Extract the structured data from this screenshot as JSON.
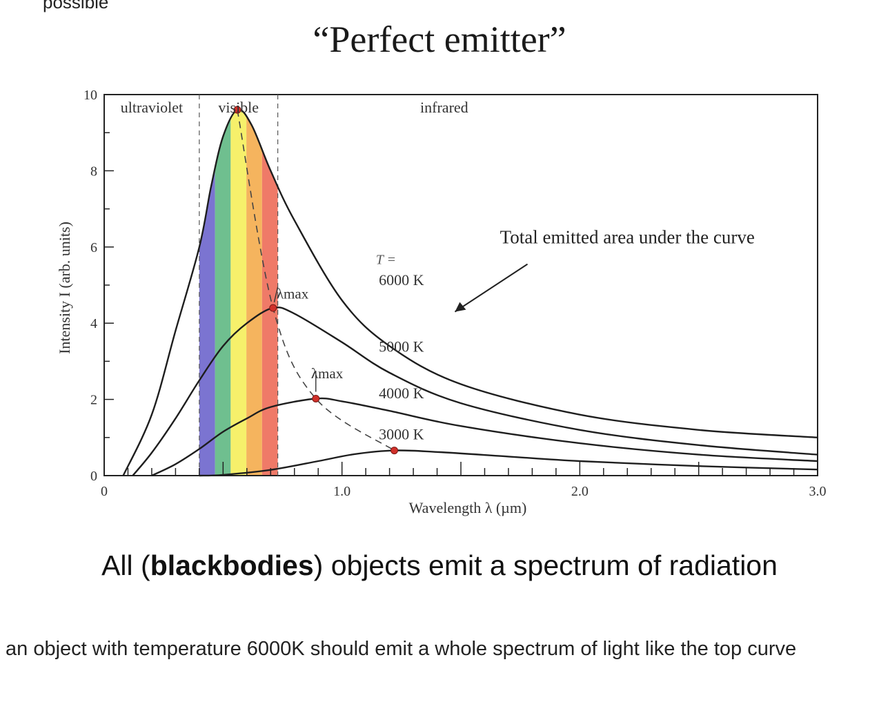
{
  "page": {
    "top_fragment": "possible",
    "title": "“Perfect emitter”",
    "headline": {
      "before": "All (",
      "bold": "blackbodies",
      "after": ") objects emit a spectrum of radiation"
    },
    "caption": "an object with temperature 6000K should emit a whole spectrum of light like the top curve"
  },
  "chart_data": {
    "type": "line",
    "xlabel": "Wavelength λ (µm)",
    "ylabel": "Intensity I (arb. units)",
    "xlim": [
      0,
      3.0
    ],
    "ylim": [
      0,
      10
    ],
    "x_tick_labels": [
      {
        "value": 0,
        "label": "0"
      },
      {
        "value": 1.0,
        "label": "1.0"
      },
      {
        "value": 2.0,
        "label": "2.0"
      },
      {
        "value": 3.0,
        "label": "3.0"
      }
    ],
    "y_tick_labels": [
      {
        "value": 0,
        "label": "0"
      },
      {
        "value": 2,
        "label": "2"
      },
      {
        "value": 4,
        "label": "4"
      },
      {
        "value": 6,
        "label": "6"
      },
      {
        "value": 8,
        "label": "8"
      },
      {
        "value": 10,
        "label": "10"
      }
    ],
    "regions": [
      {
        "label": "ultraviolet",
        "from": 0,
        "to": 0.4
      },
      {
        "label": "visible",
        "from": 0.4,
        "to": 0.73
      },
      {
        "label": "infrared",
        "from": 0.73,
        "to": 3.0
      }
    ],
    "visible_band_colors": [
      "#7b74d1",
      "#6fbf8f",
      "#f6f06b",
      "#f5b45e",
      "#ef7a68"
    ],
    "temperature_label": "T =",
    "series": [
      {
        "name": "6000 K",
        "peak": [
          0.56,
          9.6
        ],
        "points": [
          [
            0.08,
            0
          ],
          [
            0.2,
            1.6
          ],
          [
            0.3,
            3.8
          ],
          [
            0.4,
            6.0
          ],
          [
            0.45,
            7.6
          ],
          [
            0.5,
            8.9
          ],
          [
            0.56,
            9.6
          ],
          [
            0.62,
            9.2
          ],
          [
            0.7,
            8.0
          ],
          [
            0.8,
            6.7
          ],
          [
            1.0,
            4.6
          ],
          [
            1.2,
            3.4
          ],
          [
            1.5,
            2.4
          ],
          [
            2.0,
            1.6
          ],
          [
            2.5,
            1.2
          ],
          [
            3.0,
            1.0
          ]
        ]
      },
      {
        "name": "5000 K",
        "peak": [
          0.71,
          4.4
        ],
        "points": [
          [
            0.12,
            0
          ],
          [
            0.2,
            0.6
          ],
          [
            0.3,
            1.5
          ],
          [
            0.4,
            2.5
          ],
          [
            0.5,
            3.4
          ],
          [
            0.6,
            4.0
          ],
          [
            0.71,
            4.4
          ],
          [
            0.8,
            4.25
          ],
          [
            1.0,
            3.5
          ],
          [
            1.2,
            2.7
          ],
          [
            1.5,
            1.9
          ],
          [
            2.0,
            1.2
          ],
          [
            2.5,
            0.8
          ],
          [
            3.0,
            0.55
          ]
        ]
      },
      {
        "name": "4000 K",
        "peak": [
          0.89,
          2.02
        ],
        "points": [
          [
            0.2,
            0
          ],
          [
            0.3,
            0.3
          ],
          [
            0.4,
            0.7
          ],
          [
            0.5,
            1.15
          ],
          [
            0.6,
            1.5
          ],
          [
            0.7,
            1.8
          ],
          [
            0.89,
            2.02
          ],
          [
            1.0,
            1.95
          ],
          [
            1.2,
            1.7
          ],
          [
            1.5,
            1.3
          ],
          [
            2.0,
            0.85
          ],
          [
            2.5,
            0.55
          ],
          [
            3.0,
            0.38
          ]
        ]
      },
      {
        "name": "3000 K",
        "peak": [
          1.22,
          0.66
        ],
        "points": [
          [
            0.4,
            0
          ],
          [
            0.5,
            0.02
          ],
          [
            0.7,
            0.15
          ],
          [
            0.9,
            0.38
          ],
          [
            1.05,
            0.56
          ],
          [
            1.22,
            0.66
          ],
          [
            1.4,
            0.62
          ],
          [
            1.7,
            0.5
          ],
          [
            2.0,
            0.38
          ],
          [
            2.5,
            0.25
          ],
          [
            3.0,
            0.16
          ]
        ]
      }
    ],
    "lambda_max_label": "λmax",
    "annotation": "Total emitted area under the curve"
  }
}
